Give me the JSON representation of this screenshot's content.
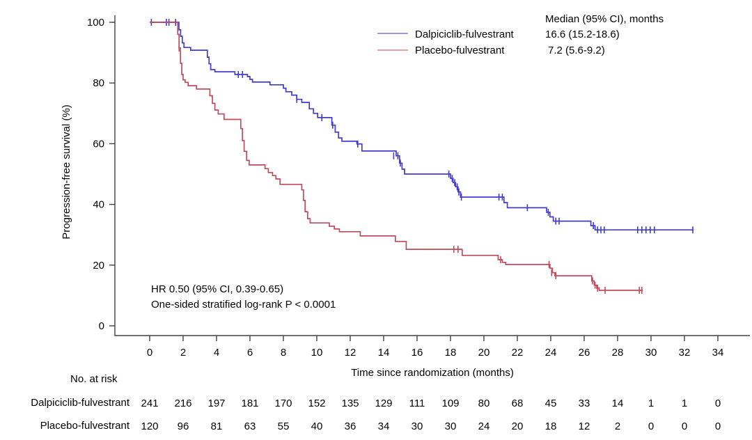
{
  "page": {
    "background": "#ffffff"
  },
  "chart_data": {
    "type": "line",
    "subtype": "kaplan-meier-step-curve",
    "title": "",
    "xlabel": "Time since randomization (months)",
    "ylabel": "Progression-free survival (%)",
    "xlim": [
      0,
      34
    ],
    "ylim": [
      0,
      100
    ],
    "grid": false,
    "xticks": [
      0,
      2,
      4,
      6,
      8,
      10,
      12,
      14,
      16,
      18,
      20,
      22,
      24,
      26,
      28,
      30,
      32,
      34
    ],
    "yticks": [
      0,
      20,
      40,
      60,
      80,
      100
    ],
    "legend_header": "Median (95% CI), months",
    "annotation_line1": "HR 0.50 (95% CI, 0.39-0.65)",
    "annotation_line2": "One-sided stratified log-rank P < 0.0001",
    "axis_color": "#404040",
    "series": [
      {
        "name": "Dalpiciclib-fulvestrant",
        "median": "16.6 (15.2-18.6)",
        "color": "#413bcd",
        "legend_color": "#9a99e6",
        "end_month": 32.55,
        "steps": [
          [
            0,
            100
          ],
          [
            1.75,
            97.5
          ],
          [
            1.85,
            95.4
          ],
          [
            1.95,
            93.2
          ],
          [
            2.05,
            91.7
          ],
          [
            2.45,
            90.8
          ],
          [
            3.45,
            88.5
          ],
          [
            3.55,
            86.3
          ],
          [
            3.65,
            84.4
          ],
          [
            3.9,
            83.7
          ],
          [
            5.1,
            82.8
          ],
          [
            5.85,
            82.1
          ],
          [
            6.0,
            81.2
          ],
          [
            6.15,
            80.3
          ],
          [
            7.2,
            79.4
          ],
          [
            8.0,
            78.3
          ],
          [
            8.15,
            77.1
          ],
          [
            8.5,
            76.0
          ],
          [
            8.8,
            74.6
          ],
          [
            9.1,
            73.6
          ],
          [
            9.55,
            71.5
          ],
          [
            9.8,
            70.0
          ],
          [
            10.05,
            68.6
          ],
          [
            10.9,
            66.1
          ],
          [
            11.1,
            63.8
          ],
          [
            11.3,
            61.9
          ],
          [
            11.5,
            60.8
          ],
          [
            12.4,
            59.9
          ],
          [
            12.7,
            57.6
          ],
          [
            14.75,
            56.0
          ],
          [
            14.95,
            53.6
          ],
          [
            15.1,
            51.6
          ],
          [
            15.25,
            50.0
          ],
          [
            18.0,
            48.6
          ],
          [
            18.15,
            47.2
          ],
          [
            18.3,
            45.8
          ],
          [
            18.45,
            44.1
          ],
          [
            18.6,
            42.4
          ],
          [
            21.2,
            40.6
          ],
          [
            21.4,
            38.9
          ],
          [
            23.75,
            37.4
          ],
          [
            23.95,
            35.9
          ],
          [
            24.15,
            34.5
          ],
          [
            26.4,
            33.0
          ],
          [
            26.65,
            31.6
          ]
        ],
        "censors": [
          [
            0.1,
            100
          ],
          [
            1.0,
            100
          ],
          [
            1.15,
            100
          ],
          [
            1.55,
            100
          ],
          [
            5.3,
            82.8
          ],
          [
            5.55,
            82.8
          ],
          [
            8.8,
            74.6
          ],
          [
            10.3,
            68.6
          ],
          [
            10.95,
            66.1
          ],
          [
            12.45,
            59.9
          ],
          [
            14.6,
            56.0
          ],
          [
            14.85,
            56.0
          ],
          [
            15.0,
            53.6
          ],
          [
            17.9,
            50.0
          ],
          [
            18.1,
            48.6
          ],
          [
            18.25,
            47.2
          ],
          [
            18.4,
            45.8
          ],
          [
            18.5,
            44.1
          ],
          [
            18.65,
            42.4
          ],
          [
            20.9,
            42.4
          ],
          [
            21.1,
            42.4
          ],
          [
            22.6,
            38.9
          ],
          [
            23.85,
            37.4
          ],
          [
            24.3,
            34.5
          ],
          [
            24.5,
            34.5
          ],
          [
            26.55,
            33.0
          ],
          [
            26.8,
            31.6
          ],
          [
            27.0,
            31.6
          ],
          [
            27.2,
            31.6
          ],
          [
            29.2,
            31.6
          ],
          [
            29.45,
            31.6
          ],
          [
            29.7,
            31.6
          ],
          [
            29.95,
            31.6
          ],
          [
            30.2,
            31.6
          ],
          [
            32.5,
            31.6
          ]
        ]
      },
      {
        "name": "Placebo-fulvestrant",
        "median": "7.2 (5.6-9.2)",
        "color": "#c4495a",
        "legend_color": "#e7a1ac",
        "end_month": 29.5,
        "steps": [
          [
            0,
            100
          ],
          [
            1.68,
            96.0
          ],
          [
            1.76,
            91.5
          ],
          [
            1.84,
            86.5
          ],
          [
            1.92,
            82.8
          ],
          [
            2.0,
            81.0
          ],
          [
            2.12,
            80.2
          ],
          [
            2.3,
            79.1
          ],
          [
            2.8,
            78.0
          ],
          [
            3.6,
            75.8
          ],
          [
            3.75,
            73.3
          ],
          [
            3.9,
            71.1
          ],
          [
            4.1,
            69.8
          ],
          [
            4.45,
            68.0
          ],
          [
            5.45,
            65.0
          ],
          [
            5.55,
            61.0
          ],
          [
            5.65,
            57.5
          ],
          [
            5.8,
            54.5
          ],
          [
            5.95,
            53.0
          ],
          [
            6.9,
            51.8
          ],
          [
            7.1,
            50.5
          ],
          [
            7.35,
            49.5
          ],
          [
            7.55,
            48.4
          ],
          [
            7.8,
            46.6
          ],
          [
            9.1,
            44.8
          ],
          [
            9.2,
            41.3
          ],
          [
            9.3,
            37.6
          ],
          [
            9.45,
            35.3
          ],
          [
            9.6,
            33.9
          ],
          [
            10.75,
            32.8
          ],
          [
            11.05,
            31.9
          ],
          [
            11.35,
            31.0
          ],
          [
            12.6,
            29.6
          ],
          [
            14.7,
            27.8
          ],
          [
            15.35,
            25.2
          ],
          [
            18.7,
            23.2
          ],
          [
            20.85,
            21.8
          ],
          [
            21.1,
            20.9
          ],
          [
            21.3,
            20.2
          ],
          [
            23.95,
            19.0
          ],
          [
            24.1,
            17.5
          ],
          [
            24.25,
            16.5
          ],
          [
            26.45,
            14.8
          ],
          [
            26.6,
            13.4
          ],
          [
            26.75,
            12.4
          ],
          [
            26.9,
            11.7
          ]
        ],
        "censors": [
          [
            1.76,
            91.5
          ],
          [
            18.2,
            25.2
          ],
          [
            18.45,
            25.2
          ],
          [
            21.0,
            21.8
          ],
          [
            23.9,
            20.2
          ],
          [
            24.05,
            17.5
          ],
          [
            24.3,
            16.5
          ],
          [
            26.5,
            14.8
          ],
          [
            26.65,
            13.4
          ],
          [
            26.8,
            12.4
          ],
          [
            27.25,
            11.7
          ],
          [
            29.3,
            11.7
          ],
          [
            29.45,
            11.7
          ]
        ]
      }
    ],
    "risk_table": {
      "title": "No. at risk",
      "months": [
        0,
        2,
        4,
        6,
        8,
        10,
        12,
        14,
        16,
        18,
        20,
        22,
        24,
        26,
        28,
        30,
        32,
        34
      ],
      "rows": [
        {
          "label": "Dalpiciclib-fulvestrant",
          "counts": [
            241,
            216,
            197,
            181,
            170,
            152,
            135,
            129,
            111,
            109,
            80,
            68,
            45,
            33,
            14,
            1,
            1,
            0
          ]
        },
        {
          "label": "Placebo-fulvestrant",
          "counts": [
            120,
            96,
            81,
            63,
            55,
            40,
            36,
            34,
            30,
            30,
            24,
            20,
            18,
            12,
            2,
            0,
            0,
            0
          ]
        }
      ]
    }
  }
}
